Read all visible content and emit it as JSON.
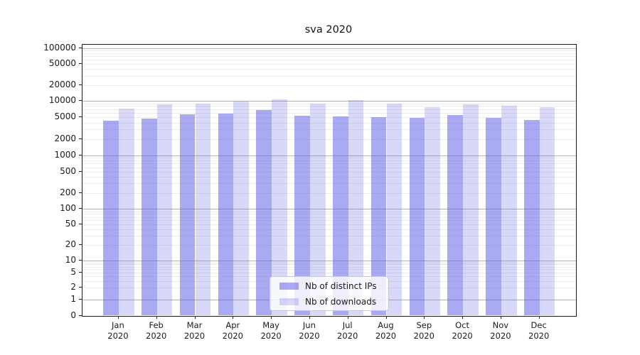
{
  "title": "sva 2020",
  "chart_data": {
    "type": "bar",
    "title": "sva 2020",
    "categories": [
      "Jan",
      "Feb",
      "Mar",
      "Apr",
      "May",
      "Jun",
      "Jul",
      "Aug",
      "Sep",
      "Oct",
      "Nov",
      "Dec"
    ],
    "year": "2020",
    "series": [
      {
        "name": "Nb of distinct IPs",
        "color": "rgba(85,85,230,0.5)",
        "values": [
          4300,
          4700,
          5600,
          5800,
          6700,
          5400,
          5100,
          5000,
          4900,
          5500,
          4900,
          4500
        ]
      },
      {
        "name": "Nb of downloads",
        "color": "rgba(85,85,230,0.23)",
        "values": [
          7200,
          8600,
          8900,
          9600,
          10600,
          8900,
          10300,
          8900,
          7700,
          8700,
          8200,
          7700
        ]
      }
    ],
    "xlabel": "",
    "ylabel": "",
    "yaxis": {
      "scale": "symlog",
      "ticks": [
        0,
        1,
        2,
        5,
        10,
        20,
        50,
        100,
        200,
        500,
        1000,
        2000,
        5000,
        10000,
        20000,
        50000,
        100000
      ],
      "top": 100000
    },
    "grid": "on",
    "legend_position": "lower-center"
  }
}
